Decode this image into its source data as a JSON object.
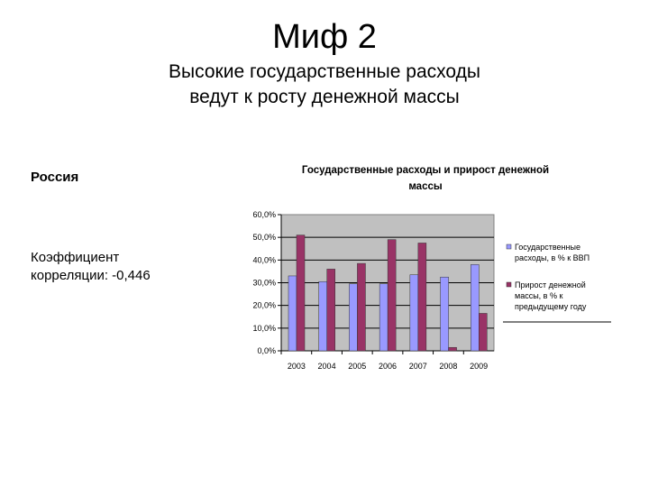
{
  "slide": {
    "title": "Миф 2",
    "subtitle_line1": "Высокие государственные расходы",
    "subtitle_line2": "ведут к росту денежной массы",
    "region": "Россия",
    "correlation_line1": "Коэффициент",
    "correlation_line2": "корреляции: -0,446"
  },
  "chart_data": {
    "type": "bar",
    "title_line1": "Государственные расходы и прирост денежной",
    "title_line2": "массы",
    "categories": [
      "2003",
      "2004",
      "2005",
      "2006",
      "2007",
      "2008",
      "2009"
    ],
    "series": [
      {
        "name_lines": [
          "Государственные",
          "расходы, в % к ВВП"
        ],
        "color": "#9999ff",
        "values": [
          33.0,
          30.5,
          29.5,
          29.5,
          33.5,
          32.5,
          38.0
        ]
      },
      {
        "name_lines": [
          "Прирост денежной",
          "массы, в % к",
          "предыдущему году"
        ],
        "color": "#993366",
        "values": [
          51.0,
          36.0,
          38.5,
          49.0,
          47.5,
          1.5,
          16.5
        ]
      }
    ],
    "ylim": [
      0,
      60
    ],
    "yticks": [
      "0,0%",
      "10,0%",
      "20,0%",
      "30,0%",
      "40,0%",
      "50,0%",
      "60,0%"
    ],
    "plot_background": "#c0c0c0",
    "gridline_color": "#000000",
    "legend_position": "right"
  }
}
